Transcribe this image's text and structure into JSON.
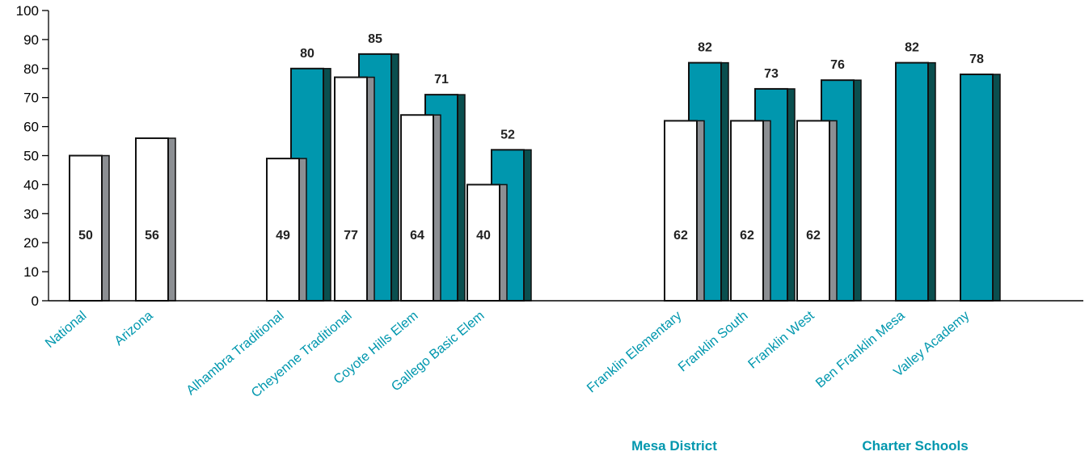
{
  "colors": {
    "accent": "#0097AE",
    "teal_fill": "#0097AE",
    "teal_side": "#0A4F4F",
    "white_fill": "#FFFFFF",
    "white_side": "#8C8F93",
    "outline": "#111111"
  },
  "chart_data": {
    "type": "bar",
    "ylim": [
      0,
      100
    ],
    "yticks": [
      0,
      10,
      20,
      30,
      40,
      50,
      60,
      70,
      80,
      90,
      100
    ],
    "grid": false,
    "categories": [
      "National",
      "Arizona",
      "Alhambra Traditional",
      "Cheyenne Traditional",
      "Coyote Hills Elem",
      "Gallego Basic Elem",
      "Franklin Elementary",
      "Franklin South",
      "Franklin West",
      "Ben Franklin Mesa",
      "Valley Academy"
    ],
    "series": [
      {
        "style": "white",
        "values": [
          50,
          56,
          49,
          77,
          64,
          40,
          62,
          62,
          62,
          null,
          null
        ]
      },
      {
        "style": "teal",
        "values": [
          null,
          null,
          80,
          85,
          71,
          52,
          82,
          73,
          76,
          82,
          78
        ]
      }
    ],
    "group_labels": [
      {
        "text": "Mesa District",
        "under": [
          "Franklin Elementary",
          "Franklin South",
          "Franklin West"
        ]
      },
      {
        "text": "Charter Schools",
        "under": [
          "Ben Franklin Mesa",
          "Valley Academy"
        ]
      }
    ]
  }
}
